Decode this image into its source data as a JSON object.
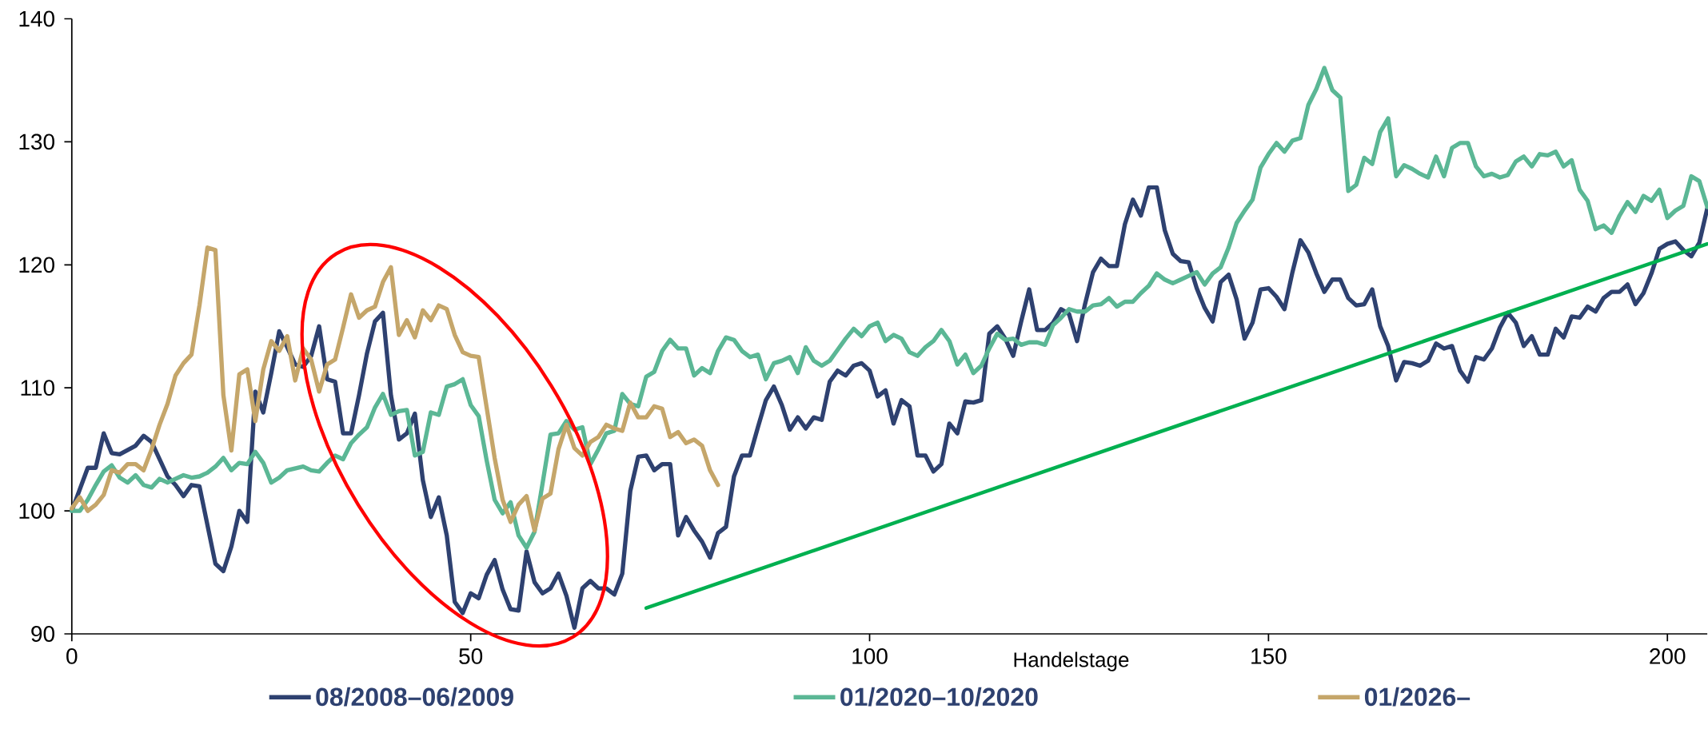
{
  "chart_data": {
    "type": "line",
    "xlabel": "Handelstage",
    "xlim": [
      0,
      205
    ],
    "xticks": [
      0,
      50,
      100,
      150,
      200
    ],
    "ylim": [
      90,
      140
    ],
    "yticks": [
      90,
      100,
      110,
      120,
      130,
      140
    ],
    "legend": "bottom",
    "series": [
      {
        "name": "08/2008–06/2009",
        "color": "#2e4170",
        "x": [
          0,
          2,
          3,
          4,
          5,
          6,
          8,
          9,
          10,
          12,
          13,
          14,
          15,
          16,
          18,
          19,
          20,
          21,
          22,
          23,
          24,
          25,
          26,
          27,
          28,
          29,
          30,
          31,
          32,
          33,
          34,
          35,
          36,
          37,
          38,
          39,
          40,
          41,
          42,
          43,
          44,
          45,
          46,
          47,
          48,
          49,
          50,
          51,
          52,
          53,
          54,
          55,
          56,
          57,
          58,
          59,
          60,
          61,
          62,
          63,
          64,
          65,
          66,
          67,
          68,
          69,
          70,
          71,
          72,
          73,
          74,
          75,
          76,
          77,
          78,
          79,
          80,
          81,
          82,
          83,
          84,
          85,
          86,
          87,
          88,
          89,
          90,
          91,
          92,
          93,
          94,
          95,
          96,
          97,
          98,
          99,
          100,
          101,
          102,
          103,
          104,
          105,
          106,
          107,
          108,
          109,
          110,
          111,
          112,
          113,
          114,
          115,
          116,
          117,
          118,
          119,
          120,
          121,
          122,
          123,
          124,
          125,
          126,
          127,
          128,
          129,
          130,
          131,
          132,
          133,
          134,
          135,
          136,
          137,
          138,
          139,
          140,
          141,
          142,
          143,
          144,
          145,
          146,
          147,
          148,
          149,
          150,
          151,
          152,
          153,
          154,
          155,
          156,
          157,
          158,
          159,
          160,
          161,
          162,
          163,
          164,
          165,
          166,
          167,
          168,
          169,
          170,
          171,
          172,
          173,
          174,
          175,
          176,
          177,
          178,
          179,
          180,
          181,
          182,
          183,
          184,
          185,
          186,
          187,
          188,
          189,
          190,
          191,
          192,
          193,
          194,
          195,
          196,
          197,
          198,
          199,
          200,
          201,
          202,
          203,
          204,
          205
        ],
        "values": [
          100.0,
          103.5,
          103.5,
          106.3,
          104.7,
          104.6,
          105.3,
          106.1,
          105.6,
          102.8,
          102.1,
          101.2,
          102.1,
          102.0,
          95.7,
          95.1,
          97.1,
          100.0,
          99.1,
          109.7,
          108.0,
          111.2,
          114.6,
          113.3,
          111.9,
          111.7,
          112.6,
          115.0,
          110.7,
          110.5,
          106.3,
          106.3,
          109.4,
          112.8,
          115.4,
          116.1,
          109.4,
          105.8,
          106.3,
          107.9,
          102.5,
          99.5,
          101.1,
          98.0,
          92.6,
          91.7,
          93.3,
          92.9,
          94.8,
          96.0,
          93.6,
          92.0,
          91.9,
          96.7,
          94.2,
          93.3,
          93.7,
          94.9,
          93.1,
          90.5,
          93.7,
          94.3,
          93.7,
          93.7,
          93.2,
          94.9,
          101.6,
          104.4,
          104.5,
          103.3,
          103.8,
          103.8,
          98.0,
          99.5,
          98.4,
          97.5,
          96.2,
          98.2,
          98.7,
          102.8,
          104.5,
          104.5,
          106.8,
          109.0,
          110.1,
          108.6,
          106.6,
          107.6,
          106.7,
          107.6,
          107.4,
          110.5,
          111.4,
          111.0,
          111.8,
          112.0,
          111.4,
          109.3,
          109.8,
          107.1,
          109.0,
          108.5,
          104.5,
          104.5,
          103.2,
          103.8,
          107.1,
          106.3,
          108.9,
          108.8,
          109.0,
          114.4,
          115.0,
          114.0,
          112.6,
          115.4,
          118.0,
          114.7,
          114.7,
          115.3,
          116.4,
          116.0,
          113.8,
          116.8,
          119.4,
          120.5,
          119.9,
          119.9,
          123.3,
          125.3,
          124.0,
          126.3,
          126.3,
          122.8,
          120.9,
          120.3,
          120.2,
          118.1,
          116.5,
          115.4,
          118.6,
          119.2,
          117.2,
          114.0,
          115.3,
          118.0,
          118.1,
          117.4,
          116.4,
          119.4,
          122.0,
          121.0,
          119.3,
          117.8,
          118.8,
          118.8,
          117.3,
          116.7,
          116.8,
          118.0,
          115.0,
          113.4,
          110.6,
          112.1,
          112.0,
          111.8,
          112.2,
          113.6,
          113.2,
          113.4,
          111.4,
          110.5,
          112.5,
          112.3,
          113.2,
          114.9,
          116.1,
          115.3,
          113.4,
          114.2,
          112.7,
          112.7,
          114.8,
          114.1,
          115.8,
          115.7,
          116.6,
          116.2,
          117.3,
          117.8,
          117.8,
          118.4,
          116.8,
          117.7,
          119.3,
          121.3,
          121.7,
          121.9,
          121.2,
          120.7,
          121.8,
          124.6
        ]
      },
      {
        "name": "01/2020–10/2020",
        "color": "#5bb795",
        "x": [
          0,
          1,
          2,
          3,
          4,
          5,
          6,
          7,
          8,
          9,
          10,
          11,
          12,
          14,
          15,
          16,
          17,
          18,
          19,
          20,
          21,
          22,
          23,
          24,
          25,
          26,
          27,
          29,
          30,
          31,
          32,
          33,
          34,
          35,
          36,
          37,
          38,
          39,
          40,
          41,
          42,
          43,
          44,
          45,
          46,
          47,
          48,
          49,
          50,
          51,
          52,
          53,
          54,
          55,
          56,
          57,
          58,
          59,
          60,
          61,
          62,
          63,
          64,
          65,
          66,
          67,
          68,
          69,
          70,
          71,
          72,
          73,
          74,
          75,
          76,
          77,
          78,
          79,
          80,
          81,
          82,
          83,
          84,
          85,
          86,
          87,
          88,
          89,
          90,
          91,
          92,
          93,
          94,
          95,
          96,
          97,
          98,
          99,
          100,
          101,
          102,
          103,
          104,
          105,
          106,
          107,
          108,
          109,
          110,
          111,
          112,
          113,
          114,
          115,
          116,
          117,
          118,
          119,
          120,
          121,
          122,
          123,
          124,
          125,
          126,
          127,
          128,
          129,
          130,
          131,
          132,
          133,
          134,
          135,
          136,
          137,
          138,
          139,
          140,
          141,
          142,
          143,
          144,
          145,
          146,
          147,
          148,
          149,
          150,
          151,
          152,
          153,
          154,
          155,
          156,
          157,
          158,
          159,
          160,
          161,
          162,
          163,
          164,
          165,
          166,
          167,
          168,
          169,
          170,
          171,
          172,
          173,
          174,
          175,
          176,
          177,
          178,
          179,
          180,
          181,
          182,
          183,
          184,
          185,
          186,
          187,
          188,
          189,
          190,
          191,
          192,
          193,
          194,
          195,
          196,
          197,
          198,
          199,
          200,
          201,
          202,
          203,
          204,
          205
        ],
        "values": [
          100.0,
          100.0,
          100.9,
          102.1,
          103.2,
          103.7,
          102.7,
          102.3,
          102.9,
          102.1,
          101.9,
          102.6,
          102.3,
          102.9,
          102.7,
          102.8,
          103.1,
          103.6,
          104.3,
          103.3,
          103.9,
          103.8,
          104.8,
          103.9,
          102.3,
          102.7,
          103.3,
          103.6,
          103.3,
          103.2,
          103.9,
          104.5,
          104.2,
          105.5,
          106.2,
          106.8,
          108.4,
          109.5,
          107.8,
          108.1,
          108.2,
          104.5,
          104.8,
          108.0,
          107.8,
          110.1,
          110.3,
          110.7,
          108.6,
          107.7,
          104.1,
          100.9,
          99.8,
          100.7,
          98.0,
          97.0,
          98.3,
          102.2,
          106.2,
          106.3,
          107.3,
          106.6,
          106.8,
          103.8,
          105.0,
          106.3,
          106.5,
          109.5,
          108.7,
          108.5,
          110.9,
          111.3,
          113.0,
          113.9,
          113.2,
          113.2,
          111.0,
          111.6,
          111.2,
          113.0,
          114.1,
          113.9,
          113.0,
          112.5,
          112.7,
          110.7,
          112.0,
          112.2,
          112.5,
          111.2,
          113.3,
          112.2,
          111.8,
          112.2,
          113.1,
          114.0,
          114.8,
          114.2,
          115.0,
          115.3,
          113.8,
          114.3,
          114.0,
          112.9,
          112.6,
          113.3,
          113.8,
          114.7,
          113.8,
          111.9,
          112.7,
          111.2,
          111.8,
          113.2,
          114.4,
          113.9,
          114.0,
          113.5,
          113.7,
          113.7,
          113.5,
          115.1,
          115.7,
          116.4,
          116.2,
          116.2,
          116.7,
          116.8,
          117.3,
          116.6,
          117.0,
          117.0,
          117.7,
          118.3,
          119.3,
          118.8,
          118.5,
          118.8,
          119.1,
          119.4,
          118.4,
          119.3,
          119.8,
          121.4,
          123.4,
          124.4,
          125.3,
          127.9,
          129.0,
          129.9,
          129.2,
          130.1,
          130.3,
          133.0,
          134.3,
          136.0,
          134.2,
          133.6,
          126.0,
          126.5,
          128.7,
          128.2,
          130.8,
          131.9,
          127.2,
          128.1,
          127.8,
          127.4,
          127.1,
          128.8,
          127.2,
          129.5,
          129.9,
          129.9,
          128.0,
          127.2,
          127.4,
          127.1,
          127.3,
          128.4,
          128.8,
          128.0,
          129.0,
          128.9,
          129.2,
          128.0,
          128.5,
          126.1,
          125.2,
          122.9,
          123.2,
          122.6,
          124.0,
          125.1,
          124.3,
          125.6,
          125.2,
          126.1,
          123.8,
          124.4,
          124.8,
          127.2,
          126.8,
          124.7
        ]
      },
      {
        "name": "01/2026–",
        "color": "#c5a66a",
        "x": [
          0,
          1,
          2,
          3,
          4,
          5,
          6,
          7,
          8,
          9,
          10,
          11,
          12,
          13,
          14,
          15,
          16,
          17,
          18,
          19,
          20,
          21,
          22,
          23,
          24,
          25,
          26,
          27,
          28,
          29,
          30,
          31,
          32,
          33,
          34,
          35,
          36,
          37,
          38,
          39,
          40,
          41,
          42,
          43,
          44,
          45,
          46,
          47,
          48,
          49,
          50,
          51,
          52,
          53,
          54,
          55,
          56,
          57,
          58,
          59,
          60,
          61,
          62,
          63,
          64,
          65,
          66,
          67,
          68,
          69,
          70,
          71,
          72,
          73,
          74,
          75,
          76,
          77,
          78,
          79,
          80,
          81
        ],
        "values": [
          100.2,
          101.1,
          100.0,
          100.5,
          101.3,
          103.3,
          103.1,
          103.8,
          103.8,
          103.3,
          105.0,
          107.0,
          108.7,
          111.0,
          112.0,
          112.7,
          116.7,
          121.4,
          121.2,
          109.4,
          104.9,
          111.1,
          111.5,
          107.3,
          111.5,
          113.8,
          113.0,
          114.2,
          110.6,
          113.2,
          112.3,
          109.7,
          111.9,
          112.3,
          114.9,
          117.6,
          115.7,
          116.3,
          116.6,
          118.6,
          119.8,
          114.3,
          115.5,
          114.1,
          116.3,
          115.5,
          116.7,
          116.4,
          114.3,
          112.9,
          112.6,
          112.5,
          108.4,
          104.3,
          100.9,
          99.1,
          100.5,
          101.2,
          98.4,
          101.0,
          101.4,
          105.0,
          107.0,
          105.1,
          104.5,
          105.6,
          106.0,
          107.0,
          106.7,
          106.5,
          108.8,
          107.6,
          107.6,
          108.5,
          108.3,
          106.0,
          106.4,
          105.5,
          105.8,
          105.3,
          103.3,
          102.1
        ]
      },
      {
        "type": "line",
        "color": "#00b050",
        "x": [
          72,
          205
        ],
        "values": [
          92.1,
          121.7
        ]
      }
    ]
  }
}
